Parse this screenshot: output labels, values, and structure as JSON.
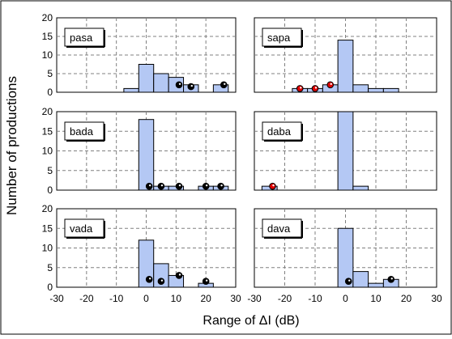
{
  "chart_data": {
    "type": "bar",
    "ylabel": "Number of productions",
    "xlabel": "Range of ΔI (dB)",
    "grid": true,
    "bar_width": 5,
    "colors": {
      "bar_fill": "#b4c8f4",
      "bar_stroke": "#000000",
      "red_marker": "#e00000",
      "black_marker": "#000000",
      "grid": "#808080"
    },
    "y_ticks": [
      "0",
      "5",
      "10",
      "15",
      "20"
    ],
    "x_ticks": [
      "-30",
      "-20",
      "-10",
      "0",
      "10",
      "20",
      "30"
    ],
    "panels": [
      {
        "label": "pasa",
        "xlim": [
          -30,
          30
        ],
        "ylim": [
          0,
          20
        ],
        "bars": [
          {
            "x": -5,
            "y": 1
          },
          {
            "x": 0,
            "y": 7.5
          },
          {
            "x": 5,
            "y": 5
          },
          {
            "x": 10,
            "y": 4
          },
          {
            "x": 15,
            "y": 2
          },
          {
            "x": 25,
            "y": 2
          }
        ],
        "markers": [
          {
            "x": 11,
            "y": 2,
            "color": "black"
          },
          {
            "x": 15,
            "y": 1.5,
            "color": "black"
          },
          {
            "x": 26,
            "y": 2,
            "color": "black"
          }
        ]
      },
      {
        "label": "sapa",
        "xlim": [
          -30,
          30
        ],
        "ylim": [
          0,
          20
        ],
        "bars": [
          {
            "x": -15,
            "y": 1
          },
          {
            "x": -10,
            "y": 1
          },
          {
            "x": -5,
            "y": 2
          },
          {
            "x": 0,
            "y": 14
          },
          {
            "x": 5,
            "y": 2
          },
          {
            "x": 10,
            "y": 1
          },
          {
            "x": 15,
            "y": 1
          }
        ],
        "markers": [
          {
            "x": -15,
            "y": 1,
            "color": "red"
          },
          {
            "x": -10,
            "y": 1,
            "color": "red"
          },
          {
            "x": -5,
            "y": 2,
            "color": "red"
          }
        ]
      },
      {
        "label": "bada",
        "xlim": [
          -30,
          30
        ],
        "ylim": [
          0,
          20
        ],
        "bars": [
          {
            "x": 0,
            "y": 18
          },
          {
            "x": 5,
            "y": 1
          },
          {
            "x": 10,
            "y": 1
          },
          {
            "x": 20,
            "y": 1
          },
          {
            "x": 25,
            "y": 1
          }
        ],
        "markers": [
          {
            "x": 1,
            "y": 1,
            "color": "black"
          },
          {
            "x": 5,
            "y": 1,
            "color": "black"
          },
          {
            "x": 11,
            "y": 1,
            "color": "black"
          },
          {
            "x": 20,
            "y": 1,
            "color": "black"
          },
          {
            "x": 25,
            "y": 1,
            "color": "black"
          }
        ]
      },
      {
        "label": "daba",
        "xlim": [
          -30,
          30
        ],
        "ylim": [
          0,
          20
        ],
        "bars": [
          {
            "x": -25,
            "y": 1
          },
          {
            "x": 0,
            "y": 20
          },
          {
            "x": 5,
            "y": 1
          }
        ],
        "markers": [
          {
            "x": -24,
            "y": 1,
            "color": "red"
          }
        ]
      },
      {
        "label": "vada",
        "xlim": [
          -30,
          30
        ],
        "ylim": [
          0,
          20
        ],
        "bars": [
          {
            "x": 0,
            "y": 12
          },
          {
            "x": 5,
            "y": 6
          },
          {
            "x": 10,
            "y": 3
          },
          {
            "x": 20,
            "y": 1
          }
        ],
        "markers": [
          {
            "x": 1,
            "y": 2,
            "color": "black"
          },
          {
            "x": 5,
            "y": 1.5,
            "color": "black"
          },
          {
            "x": 11,
            "y": 3,
            "color": "black"
          },
          {
            "x": 20,
            "y": 1.5,
            "color": "black"
          }
        ]
      },
      {
        "label": "dava",
        "xlim": [
          -30,
          30
        ],
        "ylim": [
          0,
          20
        ],
        "bars": [
          {
            "x": 0,
            "y": 15
          },
          {
            "x": 5,
            "y": 4
          },
          {
            "x": 10,
            "y": 1
          },
          {
            "x": 15,
            "y": 2
          }
        ],
        "markers": [
          {
            "x": 1,
            "y": 1.5,
            "color": "black"
          },
          {
            "x": 15,
            "y": 2,
            "color": "black"
          }
        ]
      }
    ]
  }
}
